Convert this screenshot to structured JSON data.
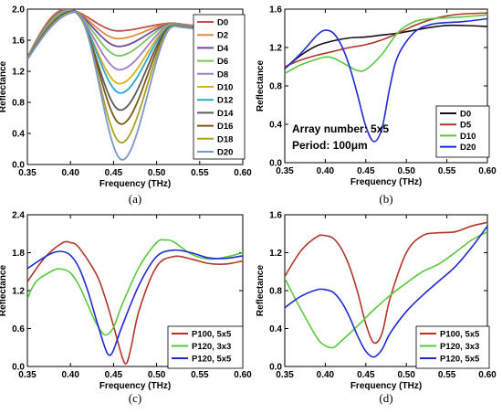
{
  "chart_data": [
    {
      "id": "a",
      "type": "line",
      "caption": "(a)",
      "xlabel": "Frequency (THz)",
      "ylabel": "Reflectance",
      "xlim": [
        0.35,
        0.6
      ],
      "ylim": [
        0.0,
        2.0
      ],
      "xticks": [
        "0.35",
        "0.40",
        "0.45",
        "0.50",
        "0.55",
        "0.60"
      ],
      "yticks": [
        "0.0",
        "0.4",
        "0.8",
        "1.2",
        "1.6",
        "2.0"
      ],
      "legend_position": "top-right",
      "series": [
        {
          "name": "D0",
          "color": "#c0504d",
          "min_x": 0.455,
          "min_y": 1.72
        },
        {
          "name": "D2",
          "color": "#e28a3e",
          "min_x": 0.455,
          "min_y": 1.62
        },
        {
          "name": "D4",
          "color": "#6f4aa2",
          "min_x": 0.456,
          "min_y": 1.52
        },
        {
          "name": "D6",
          "color": "#7bc45a",
          "min_x": 0.456,
          "min_y": 1.4
        },
        {
          "name": "D8",
          "color": "#a07ec7",
          "min_x": 0.457,
          "min_y": 1.22
        },
        {
          "name": "D10",
          "color": "#d9b21c",
          "min_x": 0.457,
          "min_y": 1.04
        },
        {
          "name": "D12",
          "color": "#2aa7c9",
          "min_x": 0.458,
          "min_y": 0.92
        },
        {
          "name": "D14",
          "color": "#5a5a5a",
          "min_x": 0.458,
          "min_y": 0.7
        },
        {
          "name": "D16",
          "color": "#7a5a1a",
          "min_x": 0.459,
          "min_y": 0.52
        },
        {
          "name": "D18",
          "color": "#b0a020",
          "min_x": 0.459,
          "min_y": 0.28
        },
        {
          "name": "D20",
          "color": "#7b98c9",
          "min_x": 0.46,
          "min_y": 0.06
        }
      ]
    },
    {
      "id": "b",
      "type": "line",
      "caption": "(b)",
      "xlabel": "Frequency (THz)",
      "ylabel": "Reflectance",
      "xlim": [
        0.35,
        0.6
      ],
      "ylim": [
        0.0,
        1.6
      ],
      "xticks": [
        "0.35",
        "0.40",
        "0.45",
        "0.50",
        "0.55",
        "0.60"
      ],
      "yticks": [
        "0.0",
        "0.4",
        "0.8",
        "1.2",
        "1.6"
      ],
      "legend_position": "bottom-right",
      "annotation": [
        "Array number: 5x5",
        "Period: 100μm"
      ],
      "series": [
        {
          "name": "D0",
          "color": "#111111",
          "x": [
            0.35,
            0.37,
            0.39,
            0.41,
            0.43,
            0.45,
            0.47,
            0.49,
            0.51,
            0.53,
            0.55,
            0.57,
            0.6
          ],
          "y": [
            0.98,
            1.12,
            1.22,
            1.27,
            1.3,
            1.31,
            1.33,
            1.35,
            1.38,
            1.41,
            1.43,
            1.43,
            1.42
          ]
        },
        {
          "name": "D5",
          "color": "#b0372a",
          "x": [
            0.35,
            0.37,
            0.39,
            0.41,
            0.43,
            0.45,
            0.47,
            0.49,
            0.51,
            0.53,
            0.55,
            0.57,
            0.6
          ],
          "y": [
            1.0,
            1.07,
            1.12,
            1.16,
            1.2,
            1.23,
            1.28,
            1.35,
            1.43,
            1.49,
            1.53,
            1.55,
            1.56
          ]
        },
        {
          "name": "D10",
          "color": "#5ac83c",
          "x": [
            0.35,
            0.37,
            0.39,
            0.4,
            0.41,
            0.43,
            0.44,
            0.45,
            0.47,
            0.49,
            0.51,
            0.53,
            0.55,
            0.57,
            0.6
          ],
          "y": [
            0.93,
            1.02,
            1.08,
            1.1,
            1.09,
            1.0,
            0.96,
            0.97,
            1.13,
            1.36,
            1.47,
            1.5,
            1.51,
            1.52,
            1.54
          ]
        },
        {
          "name": "D20",
          "color": "#1f2bd0",
          "x": [
            0.35,
            0.37,
            0.39,
            0.4,
            0.41,
            0.42,
            0.43,
            0.44,
            0.45,
            0.46,
            0.47,
            0.48,
            0.49,
            0.51,
            0.53,
            0.55,
            0.57,
            0.6
          ],
          "y": [
            0.98,
            1.14,
            1.33,
            1.38,
            1.35,
            1.22,
            1.0,
            0.7,
            0.38,
            0.22,
            0.36,
            0.8,
            1.12,
            1.36,
            1.44,
            1.46,
            1.47,
            1.5
          ]
        }
      ]
    },
    {
      "id": "c",
      "type": "line",
      "caption": "(c)",
      "xlabel": "Frequency (THz)",
      "ylabel": "Reflectance",
      "xlim": [
        0.35,
        0.6
      ],
      "ylim": [
        0.0,
        2.4
      ],
      "xticks": [
        "0.35",
        "0.40",
        "0.45",
        "0.50",
        "0.55",
        "0.60"
      ],
      "yticks": [
        "0.0",
        "0.6",
        "1.2",
        "1.8",
        "2.4"
      ],
      "legend_position": "bottom-right",
      "series": [
        {
          "name": "P100, 5x5",
          "color": "#b0372a",
          "x": [
            0.35,
            0.37,
            0.39,
            0.4,
            0.41,
            0.43,
            0.44,
            0.45,
            0.46,
            0.465,
            0.47,
            0.48,
            0.5,
            0.52,
            0.54,
            0.56,
            0.58,
            0.6
          ],
          "y": [
            1.34,
            1.72,
            1.95,
            1.96,
            1.88,
            1.46,
            1.1,
            0.64,
            0.15,
            0.05,
            0.28,
            0.9,
            1.58,
            1.74,
            1.7,
            1.63,
            1.62,
            1.67
          ]
        },
        {
          "name": "P120, 3x3",
          "color": "#5ac83c",
          "x": [
            0.35,
            0.36,
            0.38,
            0.39,
            0.4,
            0.41,
            0.42,
            0.43,
            0.44,
            0.45,
            0.46,
            0.48,
            0.5,
            0.51,
            0.52,
            0.54,
            0.56,
            0.58,
            0.6
          ],
          "y": [
            1.07,
            1.34,
            1.52,
            1.54,
            1.48,
            1.28,
            0.98,
            0.68,
            0.5,
            0.62,
            0.98,
            1.58,
            1.96,
            2.0,
            1.97,
            1.78,
            1.7,
            1.73,
            1.8
          ]
        },
        {
          "name": "P120, 5x5",
          "color": "#1f2bd0",
          "x": [
            0.35,
            0.37,
            0.38,
            0.39,
            0.4,
            0.41,
            0.42,
            0.43,
            0.44,
            0.445,
            0.45,
            0.46,
            0.48,
            0.5,
            0.52,
            0.54,
            0.56,
            0.58,
            0.6
          ],
          "y": [
            1.55,
            1.73,
            1.8,
            1.82,
            1.76,
            1.56,
            1.2,
            0.74,
            0.3,
            0.18,
            0.26,
            0.64,
            1.3,
            1.74,
            1.84,
            1.8,
            1.72,
            1.71,
            1.75
          ]
        }
      ]
    },
    {
      "id": "d",
      "type": "line",
      "caption": "(d)",
      "xlabel": "Frequency (THz)",
      "ylabel": "Reflectance",
      "xlim": [
        0.35,
        0.6
      ],
      "ylim": [
        0.0,
        1.6
      ],
      "xticks": [
        "0.35",
        "0.40",
        "0.45",
        "0.50",
        "0.55",
        "0.60"
      ],
      "yticks": [
        "0.0",
        "0.4",
        "0.8",
        "1.2",
        "1.6"
      ],
      "legend_position": "bottom-right",
      "series": [
        {
          "name": "P100, 5x5",
          "color": "#b0372a",
          "x": [
            0.35,
            0.37,
            0.39,
            0.4,
            0.41,
            0.42,
            0.43,
            0.44,
            0.45,
            0.46,
            0.47,
            0.48,
            0.5,
            0.52,
            0.54,
            0.56,
            0.58,
            0.6
          ],
          "y": [
            0.95,
            1.22,
            1.37,
            1.38,
            1.35,
            1.24,
            1.05,
            0.78,
            0.45,
            0.25,
            0.35,
            0.72,
            1.2,
            1.38,
            1.41,
            1.42,
            1.48,
            1.52
          ]
        },
        {
          "name": "P120, 3x3",
          "color": "#5ac83c",
          "x": [
            0.35,
            0.37,
            0.39,
            0.4,
            0.41,
            0.42,
            0.44,
            0.46,
            0.48,
            0.5,
            0.52,
            0.54,
            0.56,
            0.58,
            0.6
          ],
          "y": [
            0.93,
            0.6,
            0.3,
            0.22,
            0.2,
            0.27,
            0.43,
            0.6,
            0.75,
            0.88,
            1.0,
            1.08,
            1.2,
            1.33,
            1.42
          ]
        },
        {
          "name": "P120, 5x5",
          "color": "#1f2bd0",
          "x": [
            0.35,
            0.37,
            0.39,
            0.4,
            0.41,
            0.42,
            0.43,
            0.44,
            0.45,
            0.46,
            0.47,
            0.48,
            0.5,
            0.52,
            0.54,
            0.56,
            0.58,
            0.6
          ],
          "y": [
            0.62,
            0.74,
            0.81,
            0.81,
            0.78,
            0.68,
            0.52,
            0.32,
            0.16,
            0.1,
            0.18,
            0.35,
            0.58,
            0.75,
            0.9,
            1.05,
            1.25,
            1.48
          ]
        }
      ]
    }
  ]
}
